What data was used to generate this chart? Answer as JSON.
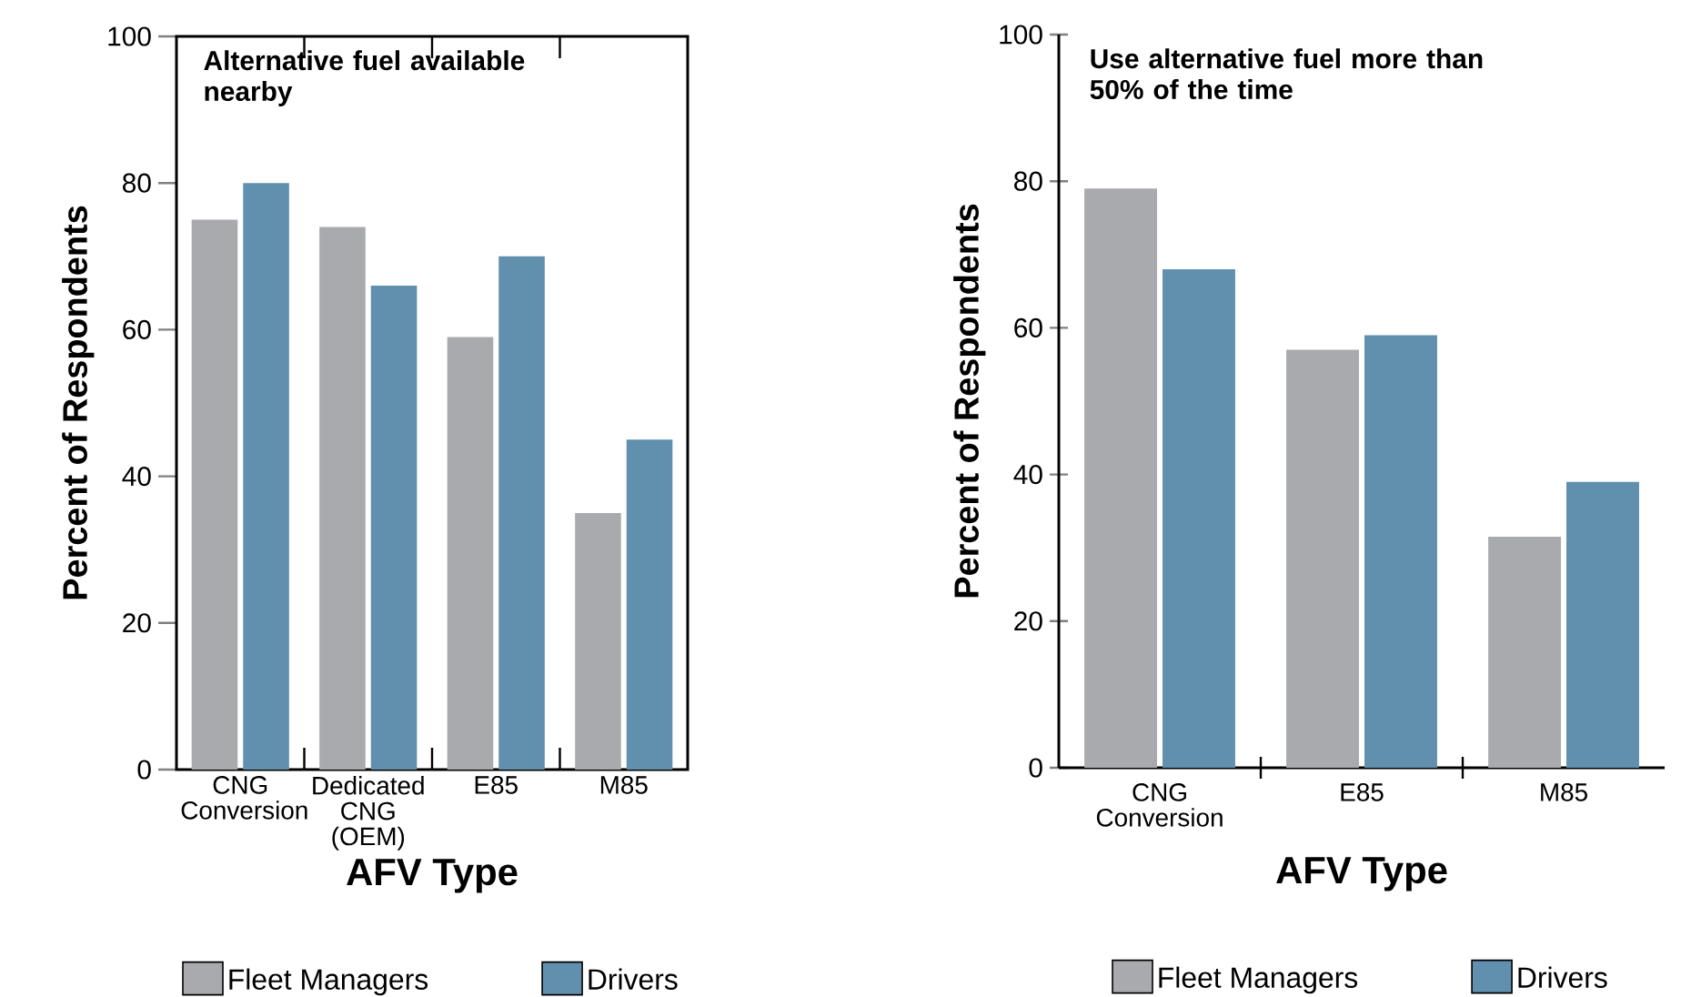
{
  "chart_data": [
    {
      "type": "bar",
      "title": "Alternative fuel available nearby",
      "xlabel": "AFV Type",
      "ylabel": "Percent of Respondents",
      "categories": [
        "CNG Conversion",
        "Dedicated CNG (OEM)",
        "E85",
        "M85"
      ],
      "series": [
        {
          "name": "Fleet Managers",
          "color": "#a9aaad",
          "values": [
            75,
            74,
            59,
            35
          ]
        },
        {
          "name": "Drivers",
          "color": "#618fae",
          "values": [
            80,
            66,
            70,
            45
          ]
        }
      ],
      "ylim": [
        0,
        100
      ],
      "yticks": [
        0,
        20,
        40,
        60,
        80,
        100
      ],
      "legend": "bottom"
    },
    {
      "type": "bar",
      "title": "Use alternative fuel more than 50% of the time",
      "xlabel": "AFV Type",
      "ylabel": "Percent of Respondents",
      "categories": [
        "CNG Conversion",
        "E85",
        "M85"
      ],
      "series": [
        {
          "name": "Fleet Managers",
          "color": "#a9aaad",
          "values": [
            79,
            57,
            31.5
          ]
        },
        {
          "name": "Drivers",
          "color": "#618fae",
          "values": [
            68,
            59,
            39
          ]
        }
      ],
      "ylim": [
        0,
        100
      ],
      "yticks": [
        0,
        20,
        40,
        60,
        80,
        100
      ],
      "legend": "bottom"
    }
  ]
}
